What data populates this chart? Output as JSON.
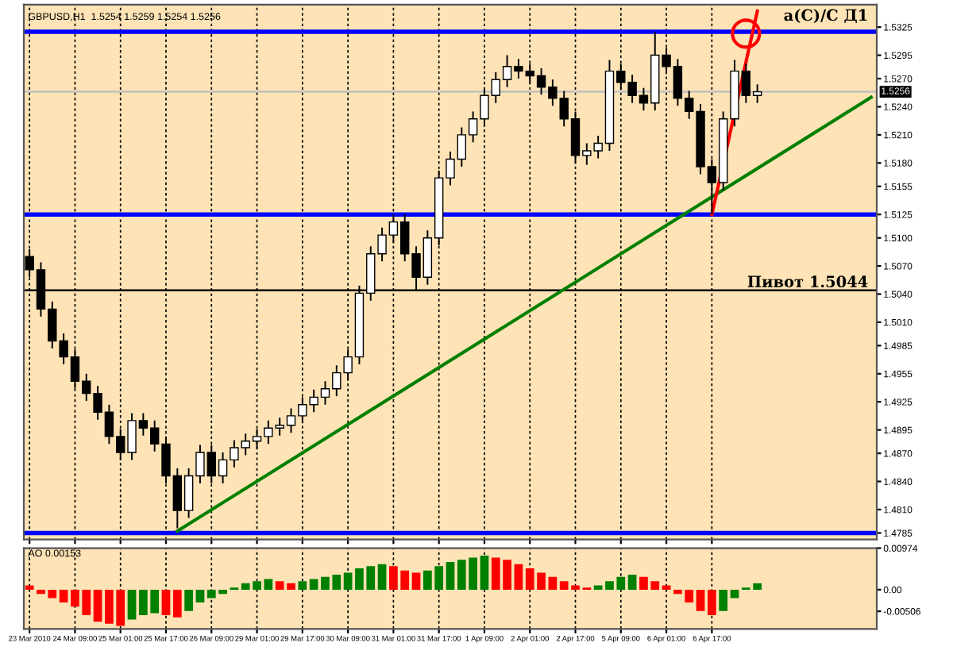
{
  "chart_data": [
    {
      "type": "candlestick",
      "title": "GBPUSD,H1  1.5254 1.5259 1.5254 1.5256",
      "categories": [
        null,
        null,
        null,
        null,
        null,
        null,
        null,
        null,
        null,
        null,
        null,
        null,
        null,
        null,
        null,
        null,
        null,
        null,
        null,
        null,
        null,
        null,
        null,
        null,
        null,
        null,
        null,
        null,
        null,
        null,
        null,
        null,
        null,
        null,
        null,
        null,
        null,
        null,
        null,
        null,
        null,
        null,
        null,
        null,
        null,
        null,
        null,
        null,
        null,
        null,
        null,
        null,
        null,
        null,
        null,
        null,
        null,
        null,
        null,
        null,
        null,
        null,
        null,
        null,
        null,
        null,
        null,
        null,
        null,
        null,
        null,
        null,
        null,
        null,
        null
      ],
      "ohlc": [
        [
          1.508,
          1.5088,
          1.5058,
          1.5066
        ],
        [
          1.5066,
          1.5074,
          1.5016,
          1.5024
        ],
        [
          1.5024,
          1.5032,
          1.4982,
          1.499
        ],
        [
          1.499,
          1.4998,
          1.4965,
          1.4973
        ],
        [
          1.4973,
          1.4981,
          1.4939,
          1.4947
        ],
        [
          1.4947,
          1.4955,
          1.4926,
          1.4934
        ],
        [
          1.4934,
          1.4942,
          1.4906,
          1.4914
        ],
        [
          1.4914,
          1.4922,
          1.488,
          1.4888
        ],
        [
          1.4888,
          1.4896,
          1.4863,
          1.4871
        ],
        [
          1.4871,
          1.4913,
          1.4863,
          1.4905
        ],
        [
          1.4905,
          1.4913,
          1.4889,
          1.4897
        ],
        [
          1.4897,
          1.4905,
          1.4872,
          1.488
        ],
        [
          1.488,
          1.4888,
          1.4838,
          1.4846
        ],
        [
          1.4846,
          1.4854,
          1.479,
          1.4809
        ],
        [
          1.4809,
          1.4854,
          1.4801,
          1.4846
        ],
        [
          1.4846,
          1.4879,
          1.4838,
          1.4871
        ],
        [
          1.4871,
          1.4879,
          1.4838,
          1.4846
        ],
        [
          1.4846,
          1.4871,
          1.4838,
          1.4863
        ],
        [
          1.4863,
          1.4884,
          1.4855,
          1.4876
        ],
        [
          1.4876,
          1.4891,
          1.4868,
          1.4883
        ],
        [
          1.4883,
          1.4896,
          1.4875,
          1.4888
        ],
        [
          1.4888,
          1.4905,
          1.488,
          1.4897
        ],
        [
          1.4897,
          1.4908,
          1.4889,
          1.49
        ],
        [
          1.49,
          1.4918,
          1.4892,
          1.491
        ],
        [
          1.491,
          1.493,
          1.4902,
          1.4922
        ],
        [
          1.4922,
          1.4938,
          1.4914,
          1.493
        ],
        [
          1.493,
          1.4947,
          1.4922,
          1.4939
        ],
        [
          1.4939,
          1.4964,
          1.4931,
          1.4956
        ],
        [
          1.4956,
          1.4981,
          1.4948,
          1.4973
        ],
        [
          1.4973,
          1.5049,
          1.4965,
          1.5041
        ],
        [
          1.5041,
          1.5091,
          1.5033,
          1.5083
        ],
        [
          1.5083,
          1.5111,
          1.5075,
          1.5103
        ],
        [
          1.5103,
          1.5125,
          1.5095,
          1.5117
        ],
        [
          1.5117,
          1.5125,
          1.5075,
          1.5083
        ],
        [
          1.5083,
          1.5091,
          1.5044,
          1.5058
        ],
        [
          1.5058,
          1.5108,
          1.505,
          1.51
        ],
        [
          1.51,
          1.5172,
          1.5092,
          1.5164
        ],
        [
          1.5164,
          1.5192,
          1.5156,
          1.5184
        ],
        [
          1.5184,
          1.5218,
          1.5176,
          1.521
        ],
        [
          1.521,
          1.5235,
          1.5202,
          1.5227
        ],
        [
          1.5227,
          1.526,
          1.5219,
          1.5252
        ],
        [
          1.5252,
          1.5277,
          1.5244,
          1.5269
        ],
        [
          1.5269,
          1.5295,
          1.5261,
          1.5283
        ],
        [
          1.5283,
          1.5291,
          1.527,
          1.5278
        ],
        [
          1.5278,
          1.5286,
          1.5265,
          1.5273
        ],
        [
          1.5273,
          1.5281,
          1.5253,
          1.5261
        ],
        [
          1.5261,
          1.5269,
          1.5241,
          1.5249
        ],
        [
          1.5249,
          1.5257,
          1.5219,
          1.5227
        ],
        [
          1.5227,
          1.5235,
          1.518,
          1.5188
        ],
        [
          1.5188,
          1.5201,
          1.5178,
          1.5193
        ],
        [
          1.5193,
          1.5209,
          1.5185,
          1.5201
        ],
        [
          1.5201,
          1.529,
          1.5193,
          1.5278
        ],
        [
          1.5278,
          1.5286,
          1.5258,
          1.5266
        ],
        [
          1.5266,
          1.5274,
          1.5244,
          1.5252
        ],
        [
          1.5252,
          1.526,
          1.5236,
          1.5244
        ],
        [
          1.5244,
          1.532,
          1.5236,
          1.5295
        ],
        [
          1.5295,
          1.5303,
          1.5275,
          1.5283
        ],
        [
          1.5283,
          1.5291,
          1.5241,
          1.5249
        ],
        [
          1.5249,
          1.5257,
          1.5227,
          1.5235
        ],
        [
          1.5235,
          1.5243,
          1.5168,
          1.5176
        ],
        [
          1.5176,
          1.5184,
          1.5125,
          1.5159
        ],
        [
          1.5159,
          1.5235,
          1.5151,
          1.5227
        ],
        [
          1.5227,
          1.529,
          1.5219,
          1.5278
        ],
        [
          1.5278,
          1.5286,
          1.5244,
          1.5252
        ],
        [
          1.5252,
          1.5264,
          1.5244,
          1.5256
        ],
        null,
        null,
        null,
        null,
        null,
        null,
        null,
        null,
        null,
        null
      ],
      "series": [
        {
          "type": "line",
          "color": "#008000",
          "values": [
            null,
            null,
            null,
            null,
            null,
            null,
            null,
            null,
            null,
            null,
            null,
            null,
            null,
            1.4787,
            null,
            null,
            null,
            null,
            null,
            null,
            null,
            null,
            null,
            null,
            null,
            null,
            null,
            null,
            null,
            null,
            null,
            null,
            null,
            null,
            null,
            null,
            null,
            null,
            null,
            null,
            null,
            null,
            null,
            null,
            null,
            null,
            null,
            null,
            null,
            null,
            null,
            null,
            null,
            null,
            null,
            null,
            null,
            null,
            null,
            null,
            null,
            null,
            null,
            null,
            null,
            null,
            null,
            null,
            null,
            null,
            null,
            null,
            null,
            null,
            1.525
          ]
        },
        {
          "type": "line",
          "color": "#ff0000",
          "values": [
            null,
            null,
            null,
            null,
            null,
            null,
            null,
            null,
            null,
            null,
            null,
            null,
            null,
            null,
            null,
            null,
            null,
            null,
            null,
            null,
            null,
            null,
            null,
            null,
            null,
            null,
            null,
            null,
            null,
            null,
            null,
            null,
            null,
            null,
            null,
            null,
            null,
            null,
            null,
            null,
            null,
            null,
            null,
            null,
            null,
            null,
            null,
            null,
            null,
            null,
            null,
            null,
            null,
            null,
            null,
            null,
            null,
            null,
            null,
            null,
            1.5125,
            null,
            null,
            null,
            1.5342,
            null,
            null,
            null,
            null,
            null,
            null,
            null,
            null,
            null,
            null
          ]
        },
        {
          "type": "scatter",
          "color": "#ff0000",
          "marker": "circle",
          "values": [
            null,
            null,
            null,
            null,
            null,
            null,
            null,
            null,
            null,
            null,
            null,
            null,
            null,
            null,
            null,
            null,
            null,
            null,
            null,
            null,
            null,
            null,
            null,
            null,
            null,
            null,
            null,
            null,
            null,
            null,
            null,
            null,
            null,
            null,
            null,
            null,
            null,
            null,
            null,
            null,
            null,
            null,
            null,
            null,
            null,
            null,
            null,
            null,
            null,
            null,
            null,
            null,
            null,
            null,
            null,
            null,
            null,
            null,
            null,
            null,
            null,
            null,
            null,
            1.5318,
            null,
            null,
            null,
            null,
            null,
            null,
            null,
            null,
            null,
            null,
            null
          ]
        }
      ],
      "ref_lines": [
        {
          "axis": "y",
          "value": 1.532,
          "label": null,
          "color": "#0000ff"
        },
        {
          "axis": "y",
          "value": 1.5125,
          "label": null,
          "color": "#0000ff"
        },
        {
          "axis": "y",
          "value": 1.4785,
          "label": null,
          "color": "#0000ff"
        },
        {
          "axis": "y",
          "value": 1.5044,
          "label": "Пивот 1.5044",
          "color": "#000000"
        },
        {
          "axis": "y",
          "value": 1.5256,
          "label": "1.5256",
          "color": "#c0c0c0"
        }
      ],
      "annotations": [
        "a(C)/C Д1"
      ],
      "ylim": [
        1.4778,
        1.5349
      ],
      "yticks": [
        1.5325,
        1.5295,
        {
          "value": 1.527,
          "label": "1.5270"
        },
        {
          "value": 1.524,
          "label": "1.5240"
        },
        {
          "value": 1.521,
          "label": "1.5210"
        },
        {
          "value": 1.518,
          "label": "1.5180"
        },
        1.5155,
        1.5125,
        {
          "value": 1.51,
          "label": "1.5100"
        },
        {
          "value": 1.507,
          "label": "1.5070"
        },
        {
          "value": 1.504,
          "label": "1.5040"
        },
        {
          "value": 1.501,
          "label": "1.5010"
        },
        1.4985,
        1.4955,
        1.4925,
        1.4895,
        {
          "value": 1.487,
          "label": "1.4870"
        },
        {
          "value": 1.484,
          "label": "1.4840"
        },
        {
          "value": 1.481,
          "label": "1.4810"
        },
        1.4785
      ],
      "grid": "x",
      "tick_labels": "y"
    },
    {
      "type": "bar",
      "title": "AO 0.00153",
      "categories": [
        "23 Mar 2010",
        null,
        null,
        null,
        "24 Mar 09:00",
        null,
        null,
        null,
        "25 Mar 01:00",
        null,
        null,
        null,
        "25 Mar 17:00",
        null,
        null,
        null,
        "26 Mar 09:00",
        null,
        null,
        null,
        "29 Mar 01:00",
        null,
        null,
        null,
        "29 Mar 17:00",
        null,
        null,
        null,
        "30 Mar 09:00",
        null,
        null,
        null,
        "31 Mar 01:00",
        null,
        null,
        null,
        "31 Mar 17:00",
        null,
        null,
        null,
        "1 Apr 09:00",
        null,
        null,
        null,
        "2 Apr 01:00",
        null,
        null,
        null,
        "2 Apr 17:00",
        null,
        null,
        null,
        "5 Apr 09:00",
        null,
        null,
        null,
        "6 Apr 01:00",
        null,
        null,
        null,
        "6 Apr 17:00",
        null,
        null,
        null,
        null,
        null,
        null,
        null,
        null,
        null,
        null,
        null,
        null,
        null,
        null
      ],
      "values": [
        0.001,
        -0.001,
        -0.002,
        -0.003,
        -0.004,
        -0.006,
        -0.0075,
        -0.008,
        -0.0085,
        -0.007,
        -0.006,
        -0.0055,
        -0.006,
        -0.0065,
        -0.005,
        -0.003,
        -0.002,
        -0.001,
        0.0005,
        0.0015,
        0.002,
        0.0025,
        0.002,
        0.0015,
        0.002,
        0.0025,
        0.003,
        0.0035,
        0.004,
        0.005,
        0.0055,
        0.006,
        0.0055,
        0.0045,
        0.004,
        0.0045,
        0.0055,
        0.0065,
        0.007,
        0.0075,
        0.008,
        0.0075,
        0.007,
        0.006,
        0.005,
        0.004,
        0.003,
        0.002,
        0.001,
        0.0005,
        0.001,
        0.002,
        0.003,
        0.0035,
        0.003,
        0.002,
        0.001,
        -0.001,
        -0.003,
        -0.005,
        -0.006,
        -0.005,
        -0.002,
        0.0005,
        0.0015,
        null,
        null,
        null,
        null,
        null,
        null,
        null,
        null,
        null,
        null
      ],
      "colors": [
        "#ff0000",
        "#ff0000",
        "#ff0000",
        "#ff0000",
        "#ff0000",
        "#ff0000",
        "#ff0000",
        "#ff0000",
        "#ff0000",
        "#008000",
        "#008000",
        "#008000",
        "#ff0000",
        "#ff0000",
        "#008000",
        "#008000",
        "#008000",
        "#008000",
        "#008000",
        "#008000",
        "#008000",
        "#008000",
        "#ff0000",
        "#ff0000",
        "#008000",
        "#008000",
        "#008000",
        "#008000",
        "#008000",
        "#008000",
        "#008000",
        "#008000",
        "#ff0000",
        "#ff0000",
        "#ff0000",
        "#008000",
        "#008000",
        "#008000",
        "#008000",
        "#008000",
        "#008000",
        "#ff0000",
        "#ff0000",
        "#ff0000",
        "#ff0000",
        "#ff0000",
        "#ff0000",
        "#ff0000",
        "#ff0000",
        "#ff0000",
        "#008000",
        "#008000",
        "#008000",
        "#008000",
        "#ff0000",
        "#ff0000",
        "#ff0000",
        "#ff0000",
        "#ff0000",
        "#ff0000",
        "#ff0000",
        "#008000",
        "#008000",
        "#008000",
        "#008000",
        "#ff0000",
        "#ff0000",
        "#ff0000",
        "#ff0000",
        "#ff0000",
        "#ff0000",
        "#ff0000",
        "#ff0000",
        "#ff0000",
        "#ff0000"
      ],
      "ylim": [
        -0.0092,
        0.00974
      ],
      "yticks": [
        0.00974,
        {
          "value": 0,
          "label": "0.00"
        },
        -0.00506
      ],
      "grid": "x"
    }
  ]
}
